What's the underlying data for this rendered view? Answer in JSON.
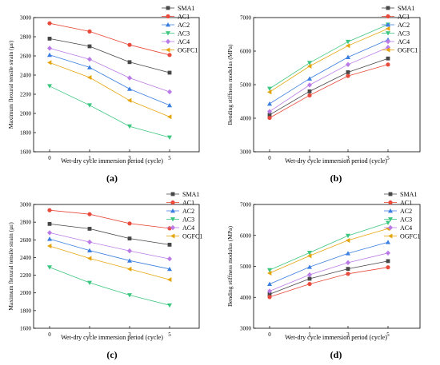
{
  "series_styles": [
    {
      "name": "SMA1",
      "color": "#474747",
      "marker": "square"
    },
    {
      "name": "AC1",
      "color": "#e84a3b",
      "marker": "circle"
    },
    {
      "name": "AC2",
      "color": "#3a7ee0",
      "marker": "triangle-up"
    },
    {
      "name": "AC3",
      "color": "#3cc67f",
      "marker": "triangle-down"
    },
    {
      "name": "AC4",
      "color": "#bb7be6",
      "marker": "diamond"
    },
    {
      "name": "OGFC1",
      "color": "#e5a40d",
      "marker": "triangle-left"
    }
  ],
  "chart_data": [
    {
      "panel": "(a)",
      "type": "line",
      "categories": [
        "0",
        "1",
        "3",
        "5"
      ],
      "xlabel": "Wet-dry cycle immersion period (cycle)",
      "ylabel": "Maximum flexural tensile strain (με)",
      "ylim": [
        1600,
        3000
      ],
      "yticks": [
        1600,
        1800,
        2000,
        2200,
        2400,
        2600,
        2800,
        3000
      ],
      "legend": "top-right",
      "grid": false,
      "series": [
        {
          "name": "SMA1",
          "values": [
            2780,
            2700,
            2535,
            2425
          ]
        },
        {
          "name": "AC1",
          "values": [
            2940,
            2855,
            2715,
            2610
          ]
        },
        {
          "name": "AC2",
          "values": [
            2610,
            2480,
            2255,
            2085
          ]
        },
        {
          "name": "AC3",
          "values": [
            2285,
            2085,
            1865,
            1750
          ]
        },
        {
          "name": "AC4",
          "values": [
            2680,
            2565,
            2370,
            2225
          ]
        },
        {
          "name": "OGFC1",
          "values": [
            2530,
            2375,
            2135,
            1965
          ]
        }
      ]
    },
    {
      "panel": "(b)",
      "type": "line",
      "categories": [
        "0",
        "1",
        "3",
        "5"
      ],
      "xlabel": "Wet-dry cycle immersion period (cycle)",
      "ylabel": "Bending stiffness modulus (MPa)",
      "ylim": [
        3000,
        7000
      ],
      "yticks": [
        3000,
        4000,
        5000,
        6000,
        7000
      ],
      "legend": "top-right",
      "grid": false,
      "series": [
        {
          "name": "SMA1",
          "values": [
            4100,
            4800,
            5370,
            5780
          ]
        },
        {
          "name": "AC1",
          "values": [
            4010,
            4680,
            5260,
            5600
          ]
        },
        {
          "name": "AC2",
          "values": [
            4430,
            5180,
            5820,
            6340
          ]
        },
        {
          "name": "AC3",
          "values": [
            4880,
            5650,
            6280,
            6790
          ]
        },
        {
          "name": "AC4",
          "values": [
            4200,
            4990,
            5600,
            6110
          ]
        },
        {
          "name": "OGFC1",
          "values": [
            4780,
            5550,
            6160,
            6670
          ]
        }
      ]
    },
    {
      "panel": "(c)",
      "type": "line",
      "categories": [
        "0",
        "1",
        "3",
        "5"
      ],
      "xlabel": "Wet-dry cycle immersion period (cycle)",
      "ylabel": "Maximum flexural tensile strain (με)",
      "ylim": [
        1600,
        3000
      ],
      "yticks": [
        1600,
        1800,
        2000,
        2200,
        2400,
        2600,
        2800,
        3000
      ],
      "legend": "top-right",
      "grid": false,
      "series": [
        {
          "name": "SMA1",
          "values": [
            2780,
            2725,
            2615,
            2545
          ]
        },
        {
          "name": "AC1",
          "values": [
            2935,
            2890,
            2785,
            2730
          ]
        },
        {
          "name": "AC2",
          "values": [
            2610,
            2480,
            2365,
            2270
          ]
        },
        {
          "name": "AC3",
          "values": [
            2290,
            2115,
            1975,
            1860
          ]
        },
        {
          "name": "AC4",
          "values": [
            2680,
            2575,
            2475,
            2385
          ]
        },
        {
          "name": "OGFC1",
          "values": [
            2530,
            2390,
            2270,
            2150
          ]
        }
      ]
    },
    {
      "panel": "(d)",
      "type": "line",
      "categories": [
        "0",
        "1",
        "3",
        "5"
      ],
      "xlabel": "Wet-dry cycle immersion period (cycle)",
      "ylabel": "Bending stiffness modulus (MPa)",
      "ylim": [
        3000,
        7000
      ],
      "yticks": [
        3000,
        4000,
        5000,
        6000,
        7000
      ],
      "legend": "top-right",
      "grid": false,
      "series": [
        {
          "name": "SMA1",
          "values": [
            4100,
            4600,
            4920,
            5170
          ]
        },
        {
          "name": "AC1",
          "values": [
            4010,
            4430,
            4760,
            4970
          ]
        },
        {
          "name": "AC2",
          "values": [
            4430,
            4980,
            5420,
            5780
          ]
        },
        {
          "name": "AC3",
          "values": [
            4880,
            5440,
            5990,
            6410
          ]
        },
        {
          "name": "AC4",
          "values": [
            4200,
            4730,
            5120,
            5430
          ]
        },
        {
          "name": "OGFC1",
          "values": [
            4780,
            5340,
            5840,
            6220
          ]
        }
      ]
    }
  ]
}
